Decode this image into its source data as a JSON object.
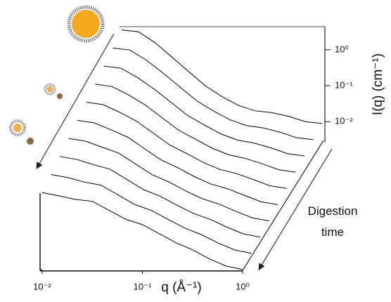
{
  "chart_data": {
    "type": "waterfall",
    "x": [
      0.01,
      0.0147,
      0.0215,
      0.0316,
      0.0464,
      0.0681,
      0.1,
      0.147,
      0.215,
      0.316,
      0.464,
      0.681,
      1
    ],
    "xlim": [
      0.01,
      1
    ],
    "xticks": [
      {
        "value": 0.01,
        "label": "10⁻²"
      },
      {
        "value": 0.1,
        "label": "10⁻¹"
      },
      {
        "value": 1,
        "label": "10⁰"
      }
    ],
    "ylim": [
      0.003,
      4
    ],
    "yticks": [
      {
        "value": 0.01,
        "label": "10⁻²"
      },
      {
        "value": 0.1,
        "label": "10⁻¹"
      },
      {
        "value": 1,
        "label": "10⁰"
      }
    ],
    "log_x": true,
    "log_y": true,
    "xlabel": "q (Å⁻¹)",
    "ylabel": "I(q) (cm⁻¹)",
    "zlabel": "Digestion time",
    "series": [
      {
        "color": "#000000",
        "values": [
          0.437,
          0.355,
          0.282,
          0.251,
          0.141,
          0.0794,
          0.0562,
          0.0316,
          0.0178,
          0.0112,
          0.00631,
          0.00398,
          0.00316
        ]
      },
      {
        "color": "#000000",
        "values": [
          0.551,
          0.453,
          0.341,
          0.278,
          0.151,
          0.0815,
          0.0555,
          0.0312,
          0.018,
          0.0118,
          0.0069,
          0.00441,
          0.00355
        ]
      },
      {
        "color": "#000000",
        "values": [
          0.695,
          0.577,
          0.414,
          0.308,
          0.161,
          0.0836,
          0.0548,
          0.0308,
          0.0182,
          0.0124,
          0.00755,
          0.00489,
          0.00398
        ]
      },
      {
        "color": "#000000",
        "values": [
          0.877,
          0.736,
          0.501,
          0.341,
          0.171,
          0.0857,
          0.0541,
          0.0304,
          0.0185,
          0.0131,
          0.00826,
          0.00541,
          0.00447
        ]
      },
      {
        "color": "#000000",
        "values": [
          1.11,
          0.938,
          0.607,
          0.378,
          0.182,
          0.0879,
          0.0535,
          0.0301,
          0.0187,
          0.0138,
          0.00904,
          0.006,
          0.00501
        ]
      },
      {
        "color": "#000000",
        "values": [
          1.4,
          1.2,
          0.736,
          0.419,
          0.195,
          0.0904,
          0.0527,
          0.0296,
          0.019,
          0.0145,
          0.00986,
          0.00664,
          0.00562
        ]
      },
      {
        "color": "#000000",
        "values": [
          1.77,
          1.52,
          0.891,
          0.465,
          0.207,
          0.0927,
          0.0521,
          0.0293,
          0.0192,
          0.0152,
          0.0108,
          0.00736,
          0.00631
        ]
      },
      {
        "color": "#000000",
        "values": [
          2.23,
          1.95,
          1.08,
          0.514,
          0.221,
          0.0951,
          0.0514,
          0.0289,
          0.0195,
          0.0161,
          0.0118,
          0.00815,
          0.00708
        ]
      },
      {
        "color": "#000000",
        "values": [
          2.81,
          2.48,
          1.31,
          0.57,
          0.236,
          0.0975,
          0.0508,
          0.0286,
          0.0197,
          0.0169,
          0.0129,
          0.00903,
          0.00794
        ]
      },
      {
        "color": "#000000",
        "values": [
          3.55,
          3.16,
          1.58,
          0.631,
          0.251,
          0.1,
          0.0501,
          0.0282,
          0.02,
          0.0178,
          0.0141,
          0.01,
          0.00891
        ]
      }
    ]
  }
}
